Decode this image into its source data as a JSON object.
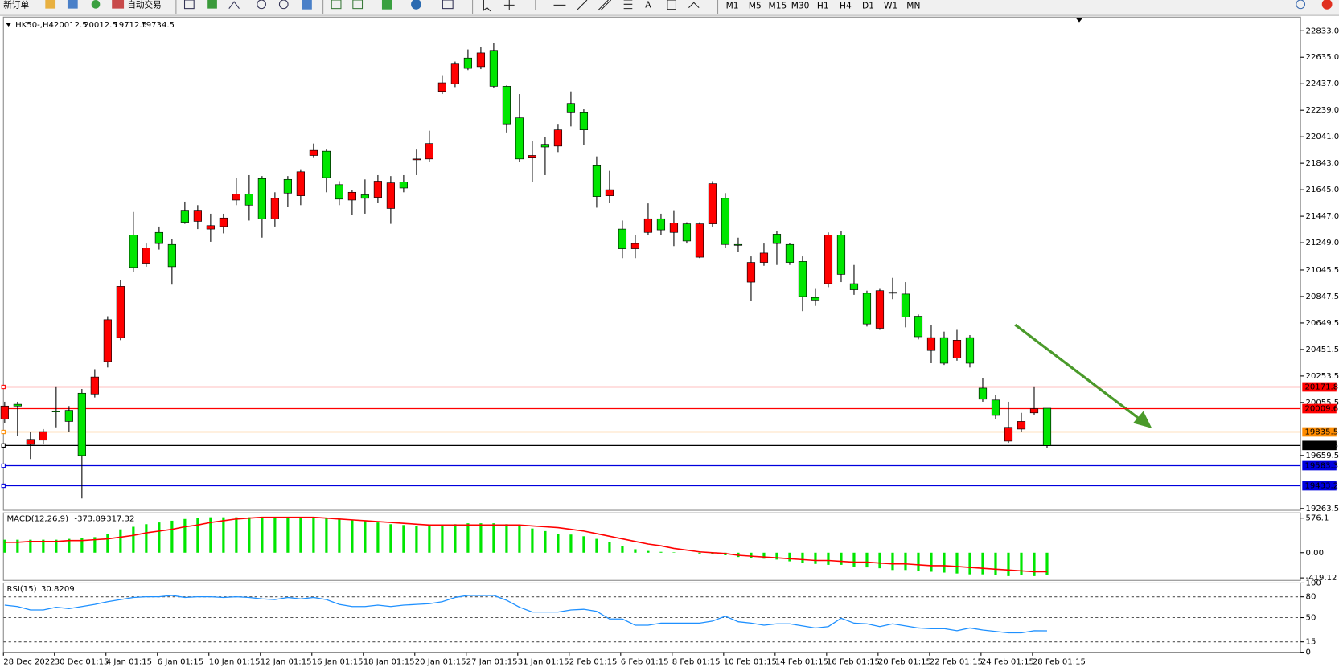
{
  "toolbar": {
    "new_order": "新订单",
    "auto_trading": "自动交易",
    "timeframes": [
      "M1",
      "M5",
      "M15",
      "M30",
      "H1",
      "H4",
      "D1",
      "W1",
      "MN"
    ]
  },
  "chart_data": [
    {
      "type": "candlestick",
      "title": "HK50-,H4",
      "up_color": "#ff0000",
      "down_color": "#00e600",
      "categories": [
        "28 Dec 2022",
        null,
        null,
        null,
        "30 Dec 01:15",
        null,
        null,
        null,
        "4 Jan 01:15",
        null,
        null,
        null,
        "6 Jan 01:15",
        null,
        null,
        null,
        "10 Jan 01:15",
        null,
        null,
        null,
        "12 Jan 01:15",
        null,
        null,
        null,
        "16 Jan 01:15",
        null,
        null,
        null,
        "18 Jan 01:15",
        null,
        null,
        null,
        "20 Jan 01:15",
        null,
        null,
        null,
        "27 Jan 01:15",
        null,
        null,
        null,
        "31 Jan 01:15",
        null,
        null,
        null,
        "2 Feb 01:15",
        null,
        null,
        null,
        "6 Feb 01:15",
        null,
        null,
        null,
        "8 Feb 01:15",
        null,
        null,
        null,
        "10 Feb 01:15",
        null,
        null,
        null,
        "14 Feb 01:15",
        null,
        null,
        null,
        "16 Feb 01:15",
        null,
        null,
        null,
        "20 Feb 01:15",
        null,
        null,
        null,
        "22 Feb 01:15",
        null,
        null,
        null,
        "24 Feb 01:15",
        null,
        null,
        null,
        "28 Feb 01:15",
        null
      ],
      "open": [
        19933,
        20042,
        19742,
        19774,
        19991,
        19997,
        20125,
        20119,
        20361,
        20540,
        21307,
        21096,
        21326,
        21236,
        21492,
        21409,
        21351,
        21370,
        21568,
        21613,
        21728,
        21428,
        21722,
        21600,
        21901,
        21933,
        21683,
        21568,
        21607,
        21588,
        21505,
        21703,
        21869,
        21875,
        22380,
        22437,
        22629,
        22565,
        22686,
        22418,
        22182,
        21888,
        21984,
        21971,
        22290,
        22226,
        21830,
        21600,
        21351,
        21204,
        21326,
        21428,
        21326,
        21390,
        21141,
        21390,
        21581,
        21236,
        20955,
        21102,
        21313,
        21236,
        21109,
        20840,
        20943,
        21307,
        20943,
        20872,
        20610,
        20879,
        20866,
        20700,
        20444,
        20540,
        20387,
        20540,
        20163,
        20074,
        19767,
        19857,
        19978,
        20012.5
      ],
      "high": [
        20061,
        20061,
        19838,
        19857,
        20176,
        20029,
        20157,
        20304,
        20700,
        20968,
        21479,
        21243,
        21370,
        21275,
        21556,
        21530,
        21466,
        21466,
        21735,
        21754,
        21747,
        21626,
        21747,
        21798,
        21990,
        21945,
        21709,
        21645,
        21722,
        21754,
        21747,
        21754,
        21945,
        22086,
        22501,
        22603,
        22693,
        22712,
        22744,
        22424,
        22360,
        22009,
        22041,
        22137,
        22380,
        22246,
        21894,
        21786,
        21415,
        21307,
        21543,
        21466,
        21492,
        21402,
        21402,
        21709,
        21620,
        21287,
        21147,
        21243,
        21338,
        21249,
        21147,
        20904,
        21326,
        21338,
        21083,
        20891,
        20904,
        20987,
        20955,
        20713,
        20636,
        20585,
        20598,
        20559,
        20240,
        20112,
        20061,
        19978,
        20176,
        20012.5
      ],
      "low": [
        19901,
        19806,
        19633,
        19742,
        19870,
        19838,
        19339,
        20093,
        20317,
        20521,
        21032,
        21070,
        21198,
        20936,
        21390,
        21351,
        21256,
        21319,
        21530,
        21415,
        21287,
        21370,
        21517,
        21530,
        21888,
        21626,
        21530,
        21454,
        21466,
        21549,
        21390,
        21626,
        21754,
        21856,
        22360,
        22412,
        22539,
        22546,
        22405,
        22073,
        21850,
        21703,
        21754,
        21926,
        22118,
        21977,
        21511,
        21549,
        21134,
        21134,
        21307,
        21307,
        21224,
        21243,
        21134,
        21370,
        21211,
        21179,
        20815,
        21077,
        21083,
        21083,
        20738,
        20777,
        20917,
        20955,
        20860,
        20623,
        20598,
        20828,
        20617,
        20527,
        20349,
        20336,
        20368,
        20317,
        20061,
        19933,
        19754,
        19838,
        19965,
        19712.5
      ],
      "close": [
        20029,
        20029,
        19780,
        19838,
        19985,
        19914,
        19659,
        20246,
        20674,
        20923,
        21064,
        21211,
        21243,
        21070,
        21402,
        21492,
        21377,
        21434,
        21613,
        21530,
        21428,
        21581,
        21620,
        21779,
        21939,
        21735,
        21575,
        21626,
        21581,
        21709,
        21696,
        21658,
        21875,
        21990,
        22444,
        22584,
        22552,
        22667,
        22418,
        22137,
        21875,
        21901,
        21964,
        22092,
        22226,
        22092,
        21594,
        21645,
        21204,
        21243,
        21428,
        21345,
        21396,
        21262,
        21390,
        21690,
        21236,
        21230,
        21102,
        21172,
        21243,
        21102,
        20847,
        20821,
        21307,
        21013,
        20898,
        20642,
        20891,
        20872,
        20693,
        20547,
        20540,
        20349,
        20521,
        20349,
        20080,
        19959,
        19870,
        19914,
        20009,
        19734.5
      ],
      "ylim": [
        19250,
        22935
      ],
      "yticks": [
        {
          "value": 22833,
          "label": "22833.0"
        },
        {
          "value": 22635,
          "label": "22635.0"
        },
        {
          "value": 22437,
          "label": "22437.0"
        },
        {
          "value": 22239,
          "label": "22239.0"
        },
        {
          "value": 22041,
          "label": "22041.0"
        },
        {
          "value": 21843,
          "label": "21843.0"
        },
        {
          "value": 21645,
          "label": "21645.0"
        },
        {
          "value": 21447,
          "label": "21447.0"
        },
        {
          "value": 21249,
          "label": "21249.0"
        },
        21045.5,
        20847.5,
        20649.5,
        20451.5,
        20253.5,
        20055.5,
        19659.5,
        19263.5
      ],
      "levels": [
        {
          "value": 20171.8,
          "color": "#ff0000"
        },
        {
          "value": 20009.6,
          "color": "#ff0000"
        },
        {
          "value": 19835.5,
          "color": "#ff8c00"
        },
        {
          "value": 19734.5,
          "color": "#000000"
        },
        {
          "value": 19583.3,
          "color": "#0000dd"
        },
        {
          "value": 19433.2,
          "color": "#0000dd"
        }
      ]
    },
    {
      "type": "macd",
      "title": "MACD(12,26,9)",
      "series": [
        {
          "color": "#00e600",
          "values": [
            216,
            216,
            216,
            216,
            216,
            230,
            245,
            259,
            317,
            389,
            432,
            475,
            504,
            533,
            562,
            576,
            590,
            590,
            590,
            590,
            590,
            590,
            590,
            590,
            590,
            576,
            562,
            547,
            533,
            504,
            475,
            461,
            446,
            446,
            461,
            475,
            490,
            490,
            490,
            475,
            446,
            403,
            360,
            317,
            302,
            274,
            230,
            173,
            115,
            58,
            29,
            14,
            7,
            0,
            -14,
            -29,
            -43,
            -72,
            -86,
            -101,
            -115,
            -144,
            -173,
            -187,
            -202,
            -202,
            -230,
            -245,
            -259,
            -288,
            -288,
            -302,
            -317,
            -331,
            -346,
            -360,
            -360,
            -374,
            -389,
            -374,
            -389,
            -373.89
          ]
        },
        {
          "color": "#ff0000",
          "values": [
            173,
            173,
            187,
            187,
            187,
            202,
            202,
            216,
            230,
            259,
            288,
            331,
            360,
            389,
            432,
            461,
            504,
            533,
            562,
            576,
            590,
            590,
            590,
            590,
            590,
            576,
            562,
            547,
            533,
            518,
            504,
            490,
            475,
            461,
            461,
            461,
            461,
            461,
            461,
            461,
            461,
            446,
            432,
            418,
            389,
            360,
            317,
            274,
            230,
            187,
            144,
            115,
            72,
            43,
            14,
            0,
            -14,
            -43,
            -58,
            -72,
            -86,
            -101,
            -115,
            -130,
            -130,
            -144,
            -158,
            -158,
            -173,
            -187,
            -187,
            -202,
            -216,
            -216,
            -230,
            -245,
            -259,
            -274,
            -288,
            -302,
            -317,
            -317.32
          ]
        }
      ],
      "ylim": [
        -461,
        663
      ],
      "yticks": [
        576.1,
        {
          "value": 0,
          "label": "0.00"
        },
        -419.12
      ]
    },
    {
      "type": "line",
      "title": "RSI(15)",
      "series": [
        {
          "color": "#1e90ff",
          "values": [
            68,
            66,
            61,
            61,
            65,
            63,
            66,
            69,
            73,
            76,
            79,
            80,
            80,
            82,
            79,
            80,
            80,
            79,
            80,
            79,
            77,
            76,
            79,
            77,
            79,
            76,
            69,
            66,
            66,
            68,
            66,
            68,
            69,
            70,
            73,
            79,
            82,
            82,
            82,
            75,
            65,
            58,
            58,
            58,
            61,
            62,
            59,
            48,
            48,
            39,
            39,
            42,
            42,
            42,
            42,
            45,
            52,
            44,
            42,
            39,
            41,
            41,
            38,
            35,
            37,
            49,
            42,
            41,
            37,
            41,
            38,
            35,
            34,
            34,
            31,
            35,
            32,
            30,
            28,
            28,
            31,
            30.8209
          ]
        }
      ],
      "ylim": [
        0,
        100
      ],
      "yticks": [
        100,
        80,
        50,
        15,
        0
      ]
    }
  ]
}
